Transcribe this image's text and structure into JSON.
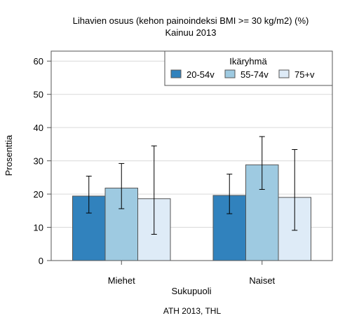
{
  "chart_data": {
    "type": "bar",
    "title": "Lihavien osuus (kehon painoindeksi BMI >= 30 kg/m2) (%)",
    "subtitle": "Kainuu 2013",
    "xlabel": "Sukupuoli",
    "ylabel": "Prosenttia",
    "ylim": [
      0,
      63
    ],
    "yticks": [
      0,
      10,
      20,
      30,
      40,
      50,
      60
    ],
    "grid": true,
    "categories": [
      "Miehet",
      "Naiset"
    ],
    "legend": {
      "title": "Ikäryhmä",
      "position": "top-right"
    },
    "series": [
      {
        "name": "20-54v",
        "color": "#3182bd",
        "values": [
          19.4,
          19.6
        ],
        "ci_low": [
          14.3,
          14.1
        ],
        "ci_high": [
          25.4,
          26.0
        ]
      },
      {
        "name": "55-74v",
        "color": "#9ecae1",
        "values": [
          21.8,
          28.8
        ],
        "ci_low": [
          15.6,
          21.4
        ],
        "ci_high": [
          29.2,
          37.3
        ]
      },
      {
        "name": "75+v",
        "color": "#deebf7",
        "values": [
          18.6,
          19.0
        ],
        "ci_low": [
          7.9,
          9.1
        ],
        "ci_high": [
          34.5,
          33.4
        ]
      }
    ],
    "source": "ATH 2013, THL"
  }
}
